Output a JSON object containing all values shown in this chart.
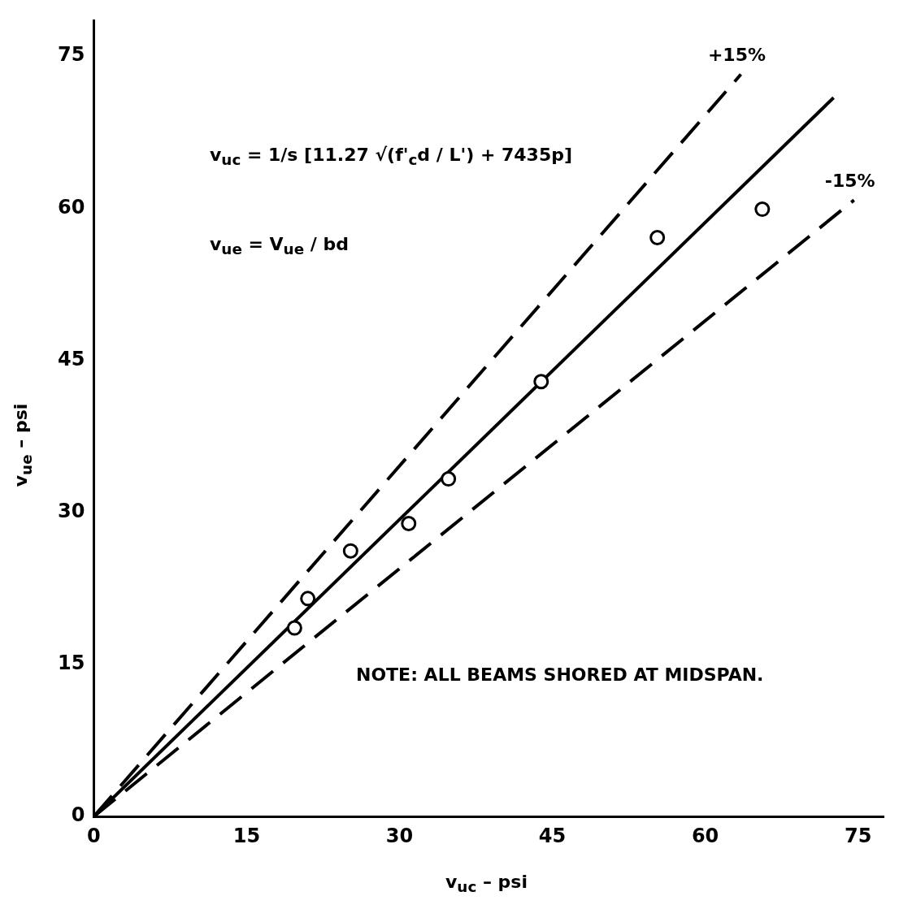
{
  "chart_data": {
    "type": "scatter",
    "xlabel": "v$_{uc}$ – psi",
    "ylabel": "v$_{ue}$ – psi",
    "xlim": [
      0,
      77.5
    ],
    "ylim": [
      0,
      78.5
    ],
    "xticks": [
      0,
      15,
      30,
      45,
      60,
      75
    ],
    "yticks": [
      0,
      15,
      30,
      45,
      60,
      75
    ],
    "grid": false,
    "legend": false,
    "series": [
      {
        "type": "line",
        "name": "+15%",
        "color": "#000000",
        "line_style": "dashed",
        "marker": "none",
        "x": [
          0,
          63.5
        ],
        "values": [
          0,
          73.2
        ]
      },
      {
        "type": "line",
        "color": "#000000",
        "line_style": "solid",
        "marker": "none",
        "x": [
          0,
          72.6
        ],
        "values": [
          0,
          70.9
        ]
      },
      {
        "type": "line",
        "name": "-15%",
        "color": "#000000",
        "line_style": "dashed",
        "marker": "none",
        "x": [
          0,
          74.6
        ],
        "values": [
          0,
          60.8
        ]
      },
      {
        "color": "#000000",
        "marker": "circle",
        "x": [
          19.7,
          21.0,
          25.2,
          30.9,
          34.8,
          43.9,
          55.3,
          65.6
        ],
        "values": [
          18.6,
          21.5,
          26.2,
          28.9,
          33.3,
          42.9,
          57.1,
          59.9
        ]
      }
    ],
    "annotations": [
      "v$_{uc}$ = 1/s [11.27 √(f'$_{c}$d / L') + 7435p]",
      "v$_{ue}$ = V$_{ue}$ / bd",
      "NOTE:  ALL BEAMS SHORED AT MIDSPAN."
    ]
  }
}
